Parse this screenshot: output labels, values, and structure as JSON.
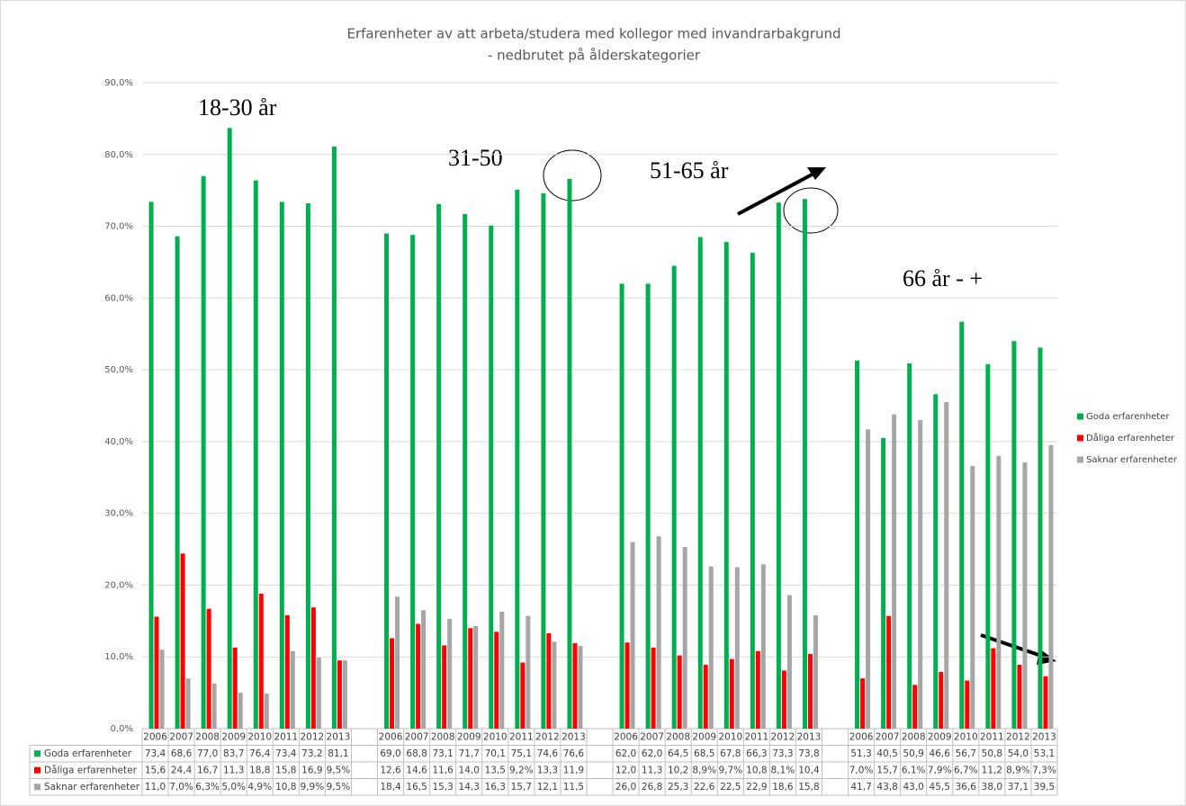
{
  "chart_data": {
    "type": "bar",
    "title": "Erfarenheter av att arbeta/studera med kollegor med invandrarbakgrund",
    "subtitle": "- nedbrutet på ålderskategorier",
    "annotations": [
      "18-30 år",
      "31-50",
      "51-65 år",
      "66 år - +"
    ],
    "categories": [
      "2006",
      "2007",
      "2008",
      "2009",
      "2010",
      "2011",
      "2012",
      "2013",
      null,
      "2006",
      "2007",
      "2008",
      "2009",
      "2010",
      "2011",
      "2012",
      "2013",
      null,
      "2006",
      "2007",
      "2008",
      "2009",
      "2010",
      "2011",
      "2012",
      "2013",
      null,
      "2006",
      "2007",
      "2008",
      "2009",
      "2010",
      "2011",
      "2012",
      "2013"
    ],
    "series": [
      {
        "name": "Goda erfarenheter",
        "color": "#00b050",
        "values": [
          73.4,
          68.6,
          77.0,
          83.7,
          76.4,
          73.4,
          73.2,
          81.1,
          null,
          69.0,
          68.8,
          73.1,
          71.7,
          70.1,
          75.1,
          74.6,
          76.6,
          null,
          62.0,
          62.0,
          64.5,
          68.5,
          67.8,
          66.3,
          73.3,
          73.8,
          null,
          51.3,
          40.5,
          50.9,
          46.6,
          56.7,
          50.8,
          54.0,
          53.1
        ],
        "value_labels": [
          "73,4",
          "68,6",
          "77,0",
          "83,7",
          "76,4",
          "73,4",
          "73,2",
          "81,1",
          null,
          "69,0",
          "68,8",
          "73,1",
          "71,7",
          "70,1",
          "75,1",
          "74,6",
          "76,6",
          null,
          "62,0",
          "62,0",
          "64,5",
          "68,5",
          "67,8",
          "66,3",
          "73,3",
          "73,8",
          null,
          "51,3",
          "40,5",
          "50,9",
          "46,6",
          "56,7",
          "50,8",
          "54,0",
          "53,1"
        ]
      },
      {
        "name": "Dåliga erfarenheter",
        "color": "#ff0000",
        "values": [
          15.6,
          24.4,
          16.7,
          11.3,
          18.8,
          15.8,
          16.9,
          9.5,
          null,
          12.6,
          14.6,
          11.6,
          14.0,
          13.5,
          9.2,
          13.3,
          11.9,
          null,
          12.0,
          11.3,
          10.2,
          8.9,
          9.7,
          10.8,
          8.1,
          10.4,
          null,
          7.0,
          15.7,
          6.1,
          7.9,
          6.7,
          11.2,
          8.9,
          7.3
        ],
        "value_labels": [
          "15,6",
          "24,4",
          "16,7",
          "11,3",
          "18,8",
          "15,8",
          "16,9",
          "9,5%",
          null,
          "12,6",
          "14,6",
          "11,6",
          "14,0",
          "13,5",
          "9,2%",
          "13,3",
          "11,9",
          null,
          "12,0",
          "11,3",
          "10,2",
          "8,9%",
          "9,7%",
          "10,8",
          "8,1%",
          "10,4",
          null,
          "7,0%",
          "15,7",
          "6,1%",
          "7,9%",
          "6,7%",
          "11,2",
          "8,9%",
          "7,3%"
        ]
      },
      {
        "name": "Saknar erfarenheter",
        "color": "#a6a6a6",
        "values": [
          11.0,
          7.0,
          6.3,
          5.0,
          4.9,
          10.8,
          9.9,
          9.5,
          null,
          18.4,
          16.5,
          15.3,
          14.3,
          16.3,
          15.7,
          12.1,
          11.5,
          null,
          26.0,
          26.8,
          25.3,
          22.6,
          22.5,
          22.9,
          18.6,
          15.8,
          null,
          41.7,
          43.8,
          43.0,
          45.5,
          36.6,
          38.0,
          37.1,
          39.5
        ],
        "value_labels": [
          "11,0",
          "7,0%",
          "6,3%",
          "5,0%",
          "4,9%",
          "10,8",
          "9,9%",
          "9,5%",
          null,
          "18,4",
          "16,5",
          "15,3",
          "14,3",
          "16,3",
          "15,7",
          "12,1",
          "11,5",
          null,
          "26,0",
          "26,8",
          "25,3",
          "22,6",
          "22,5",
          "22,9",
          "18,6",
          "15,8",
          null,
          "41,7",
          "43,8",
          "43,0",
          "45,5",
          "36,6",
          "38,0",
          "37,1",
          "39,5"
        ]
      }
    ],
    "ylim": [
      0,
      90
    ],
    "yticks": [
      {
        "value": 0,
        "label": "0,0%"
      },
      {
        "value": 10,
        "label": "10,0%"
      },
      {
        "value": 20,
        "label": "20,0%"
      },
      {
        "value": 30,
        "label": "30,0%"
      },
      {
        "value": 40,
        "label": "40,0%"
      },
      {
        "value": 50,
        "label": "50,0%"
      },
      {
        "value": 60,
        "label": "60,0%"
      },
      {
        "value": 70,
        "label": "70,0%"
      },
      {
        "value": 80,
        "label": "80,0%"
      },
      {
        "value": 90,
        "label": "90,0%"
      }
    ],
    "grid": true,
    "legend": "right"
  }
}
